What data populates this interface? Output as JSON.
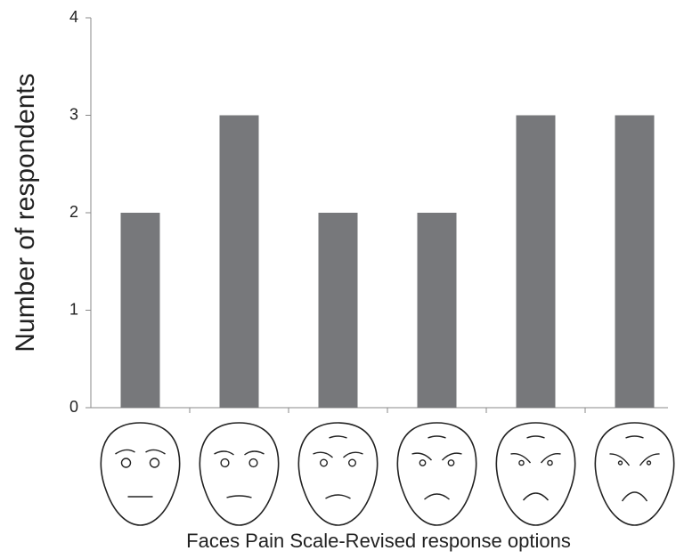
{
  "chart_data": {
    "type": "bar",
    "categories": [
      null,
      null,
      null,
      null,
      null,
      null
    ],
    "values": [
      2,
      3,
      2,
      2,
      3,
      3
    ],
    "color": "#77787b",
    "ylim": [
      0,
      4
    ],
    "yticks": [
      0,
      1,
      2,
      3,
      4
    ],
    "y_label": "Number of respondents",
    "x_label": "Faces Pain Scale-Revised response options"
  }
}
